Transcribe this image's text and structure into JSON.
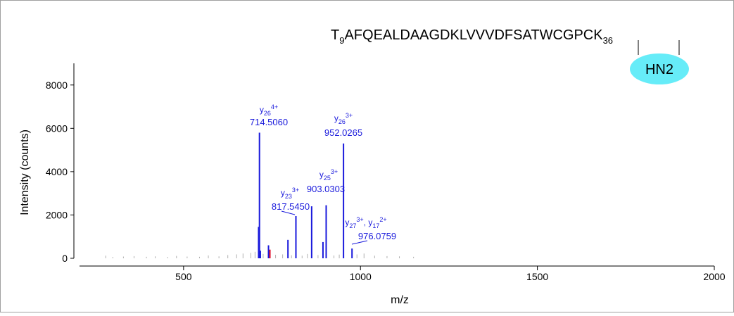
{
  "chart_data": {
    "type": "stem",
    "title": [
      {
        "t": "T"
      },
      {
        "sub": "9"
      },
      {
        "t": "AFQEALDAAGDKLVVVDFSATWCGPCK"
      },
      {
        "sub": "36"
      }
    ],
    "modification": "HN2",
    "x_label": "m/z",
    "y_label": "Intensity (counts)",
    "xlim": [
      190,
      2000
    ],
    "ylim": [
      0,
      9000
    ],
    "xticks": [
      500,
      1000,
      1500,
      2000
    ],
    "yticks": [
      0,
      2000,
      4000,
      6000,
      8000
    ],
    "series": [
      {
        "color": "#b0b0b0",
        "x": [
          280,
          300,
          330,
          360,
          395,
          420,
          455,
          480,
          510,
          545,
          570,
          600,
          625,
          650,
          668,
          690,
          702,
          725,
          760,
          780,
          805,
          835,
          850,
          880,
          925,
          940,
          990,
          1010,
          1040,
          1075,
          1110,
          1150
        ],
        "values": [
          120,
          60,
          80,
          100,
          70,
          90,
          60,
          110,
          80,
          70,
          130,
          90,
          150,
          180,
          220,
          250,
          300,
          200,
          160,
          180,
          140,
          120,
          200,
          150,
          130,
          170,
          180,
          220,
          120,
          100,
          90,
          70
        ]
      },
      {
        "color": "#1a1adc",
        "x": [
          712,
          714.506,
          717,
          740,
          795,
          817.545,
          862,
          894,
          903.0303,
          952.0265,
          976.0759
        ],
        "values": [
          1450,
          5800,
          350,
          600,
          850,
          1950,
          2400,
          750,
          2450,
          5300,
          450
        ]
      },
      {
        "color": "#e0102a",
        "x": [
          744
        ],
        "values": [
          400
        ]
      }
    ],
    "annotations": [
      {
        "label": [
          {
            "t": "y"
          },
          {
            "sub": "26"
          },
          {
            "sup": "4+"
          }
        ],
        "mz": "714.5060"
      },
      {
        "label": [
          {
            "t": "y"
          },
          {
            "sub": "26"
          },
          {
            "sup": "3+"
          }
        ],
        "mz": "952.0265"
      },
      {
        "label": [
          {
            "t": "y"
          },
          {
            "sub": "23"
          },
          {
            "sup": "3+"
          }
        ],
        "mz": "817.5450"
      },
      {
        "label": [
          {
            "t": "y"
          },
          {
            "sub": "25"
          },
          {
            "sup": "3+"
          }
        ],
        "mz": "903.0303"
      },
      {
        "label": [
          {
            "t": "y"
          },
          {
            "sub": "27"
          },
          {
            "sup": "3+"
          },
          {
            "t": ", y"
          },
          {
            "sub": "17"
          },
          {
            "sup": "2+"
          }
        ],
        "mz": "976.0759"
      }
    ]
  }
}
